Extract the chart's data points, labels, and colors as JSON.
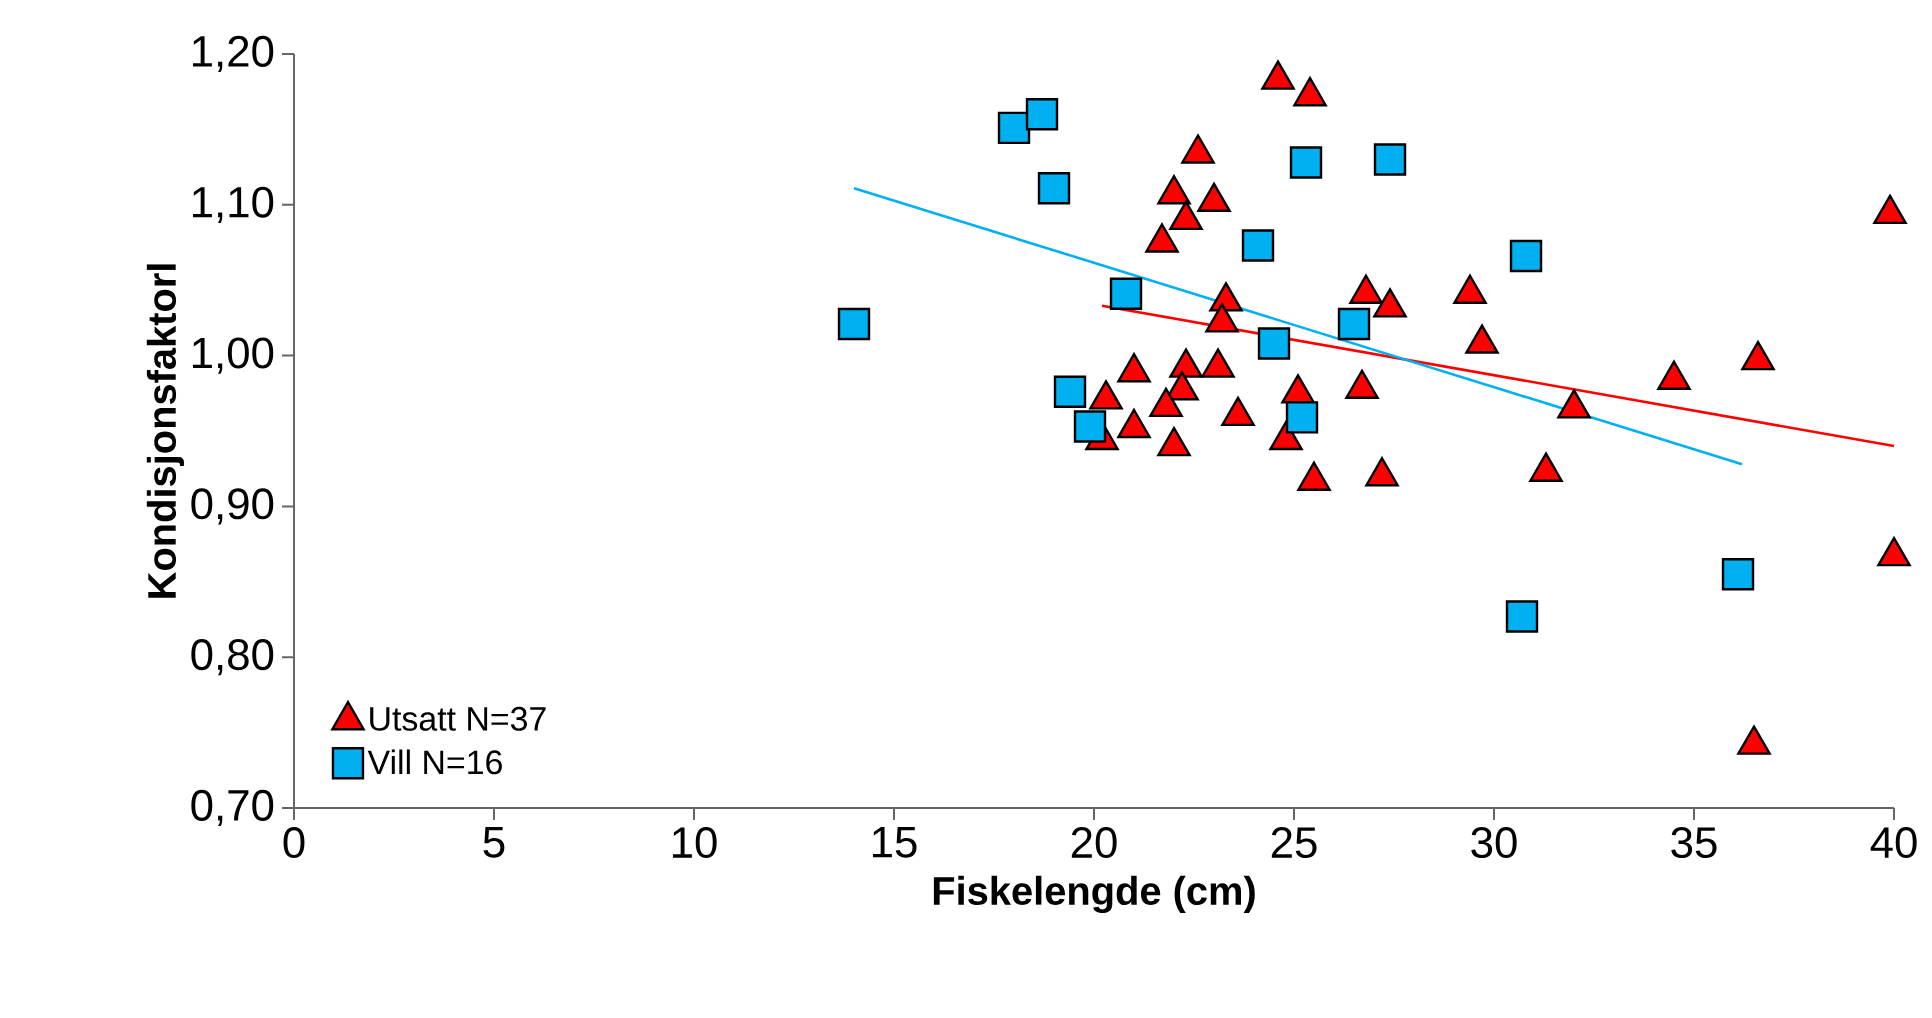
{
  "chart_data": {
    "type": "scatter",
    "xlabel": "Fiskelengde (cm)",
    "ylabel": "Kondisjonsfaktorl",
    "xlim": [
      0,
      40
    ],
    "ylim": [
      0.7,
      1.2
    ],
    "xticks": [
      0,
      5,
      10,
      15,
      20,
      25,
      30,
      35,
      40
    ],
    "yticks": [
      {
        "value": 0.7,
        "label": "0,70"
      },
      {
        "value": 0.8,
        "label": "0,80"
      },
      {
        "value": 0.9,
        "label": "0,90"
      },
      {
        "value": 1.0,
        "label": "1,00"
      },
      {
        "value": 1.1,
        "label": "1,10"
      },
      {
        "value": 1.2,
        "label": "1,20"
      }
    ],
    "grid": false,
    "legend": "bottom left",
    "series": [
      {
        "name": "Utsatt N=37",
        "color": "#ff0000",
        "marker": "triangle",
        "x": [
          24.6,
          25.4,
          22.6,
          22.0,
          23.0,
          22.3,
          21.7,
          23.3,
          23.2,
          26.8,
          27.4,
          21.0,
          22.3,
          23.1,
          20.3,
          22.2,
          21.8,
          25.1,
          26.7,
          21.0,
          23.6,
          20.2,
          22.0,
          24.8,
          25.5,
          27.2,
          39.9,
          29.4,
          29.7,
          34.5,
          36.6,
          32.0,
          31.3,
          40.0,
          36.5
        ],
        "values": [
          1.183,
          1.172,
          1.134,
          1.107,
          1.102,
          1.09,
          1.075,
          1.036,
          1.022,
          1.041,
          1.032,
          0.989,
          0.992,
          0.992,
          0.971,
          0.977,
          0.966,
          0.975,
          0.978,
          0.952,
          0.96,
          0.944,
          0.94,
          0.944,
          0.917,
          0.92,
          1.094,
          1.041,
          1.008,
          0.984,
          0.997,
          0.965,
          0.923,
          0.867,
          0.742
        ]
      },
      {
        "name": "Vill N=16",
        "color": "#00b0f0",
        "marker": "square",
        "x": [
          14.0,
          18.0,
          18.7,
          19.0,
          20.8,
          24.1,
          24.5,
          25.3,
          27.4,
          26.5,
          19.4,
          19.9,
          25.2,
          30.8,
          36.1,
          30.7
        ],
        "values": [
          1.021,
          1.151,
          1.16,
          1.111,
          1.041,
          1.073,
          1.008,
          1.128,
          1.13,
          1.021,
          0.976,
          0.953,
          0.959,
          1.066,
          0.855,
          0.827
        ]
      },
      {
        "type": "line",
        "color": "#ff0000",
        "marker": "none",
        "x": [
          20.2,
          40.0
        ],
        "values": [
          1.033,
          0.94
        ]
      },
      {
        "type": "line",
        "color": "#00b0f0",
        "marker": "none",
        "x": [
          14.0,
          36.2
        ],
        "values": [
          1.111,
          0.928
        ]
      }
    ]
  }
}
